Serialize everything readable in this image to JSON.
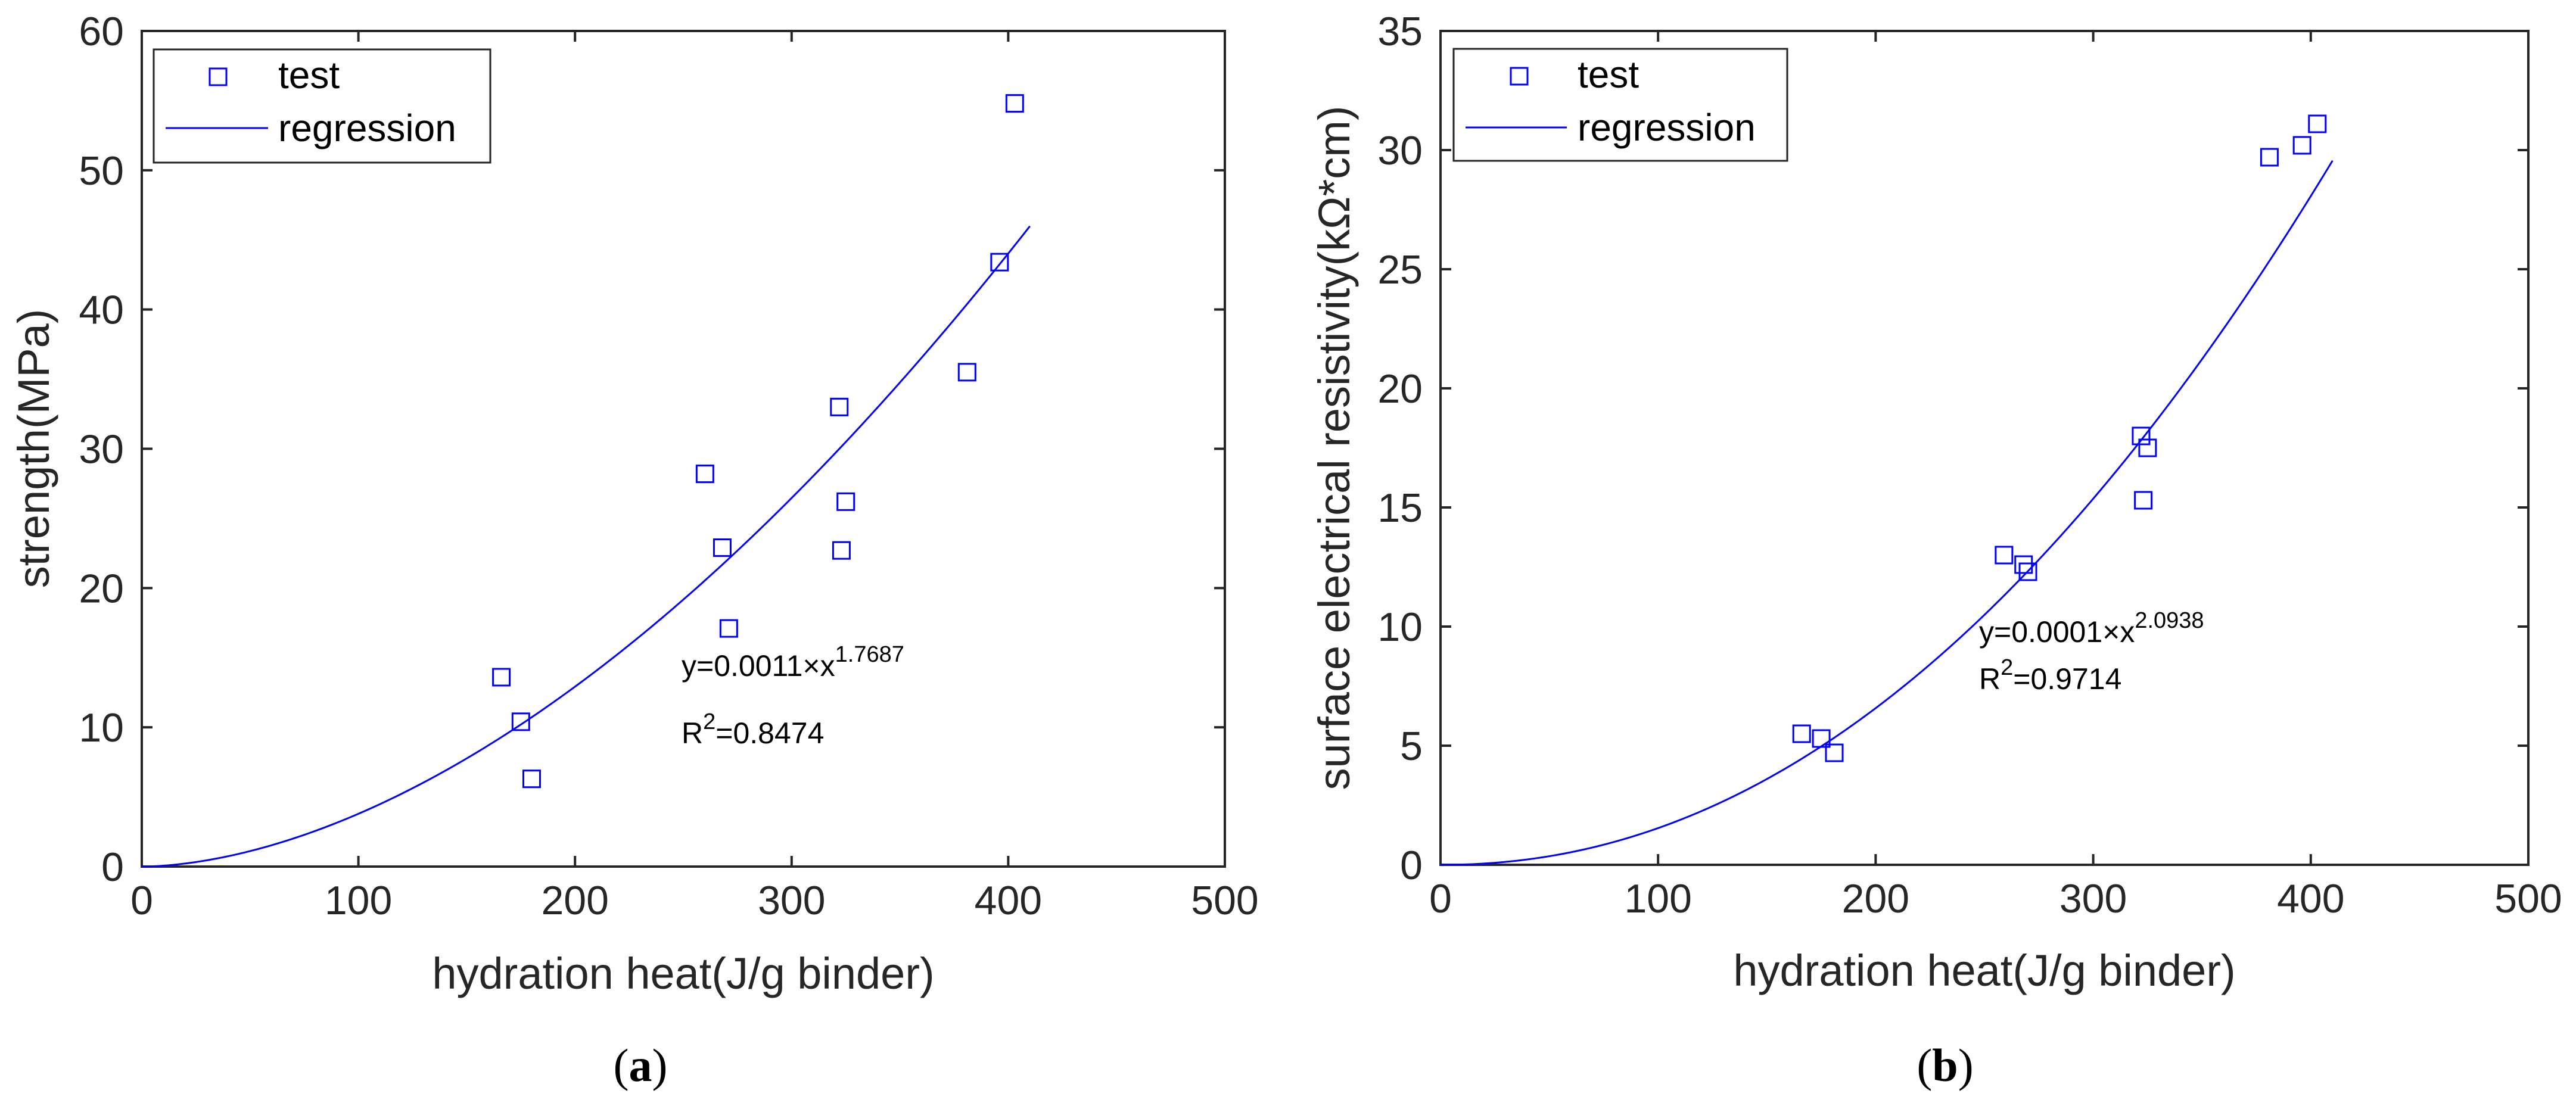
{
  "colors": {
    "series": "#0000ff",
    "axis": "#262626",
    "background": "#ffffff"
  },
  "chart_data": [
    {
      "type": "scatter",
      "panel_label": {
        "open": "(",
        "letter": "a",
        "close": ")"
      },
      "xlabel": "hydration heat(J/g binder)",
      "ylabel": "strength(MPa)",
      "xlim": [
        0,
        500
      ],
      "ylim": [
        0,
        60
      ],
      "x_ticks": [
        0,
        100,
        200,
        300,
        400,
        500
      ],
      "y_ticks": [
        0,
        10,
        20,
        30,
        40,
        50,
        60
      ],
      "grid": false,
      "legend_position": "top-left",
      "legend": {
        "test": "test",
        "regression": "regression"
      },
      "series": [
        {
          "name": "test",
          "marker": "square",
          "x": [
            166,
            175,
            180,
            260,
            268,
            271,
            322,
            323,
            325,
            381,
            396,
            403
          ],
          "y": [
            13.6,
            10.4,
            6.3,
            28.2,
            22.9,
            17.1,
            33.0,
            22.7,
            26.2,
            35.5,
            43.4,
            54.8
          ]
        },
        {
          "name": "regression",
          "type": "line",
          "model": "power",
          "a": 0.0011,
          "b": 1.7687,
          "x_range": [
            0,
            410
          ]
        }
      ],
      "annotations": {
        "equation_prefix": "y=0.0011×x",
        "equation_exponent": "1.7687",
        "r2_prefix": "R",
        "r2_sup": "2",
        "r2_value": "=0.8474"
      }
    },
    {
      "type": "scatter",
      "panel_label": {
        "open": "(",
        "letter": "b",
        "close": ")"
      },
      "xlabel": "hydration heat(J/g binder)",
      "ylabel": "surface electrical resistivity(kΩ*cm)",
      "xlim": [
        0,
        500
      ],
      "ylim": [
        0,
        35
      ],
      "x_ticks": [
        0,
        100,
        200,
        300,
        400,
        500
      ],
      "y_ticks": [
        0,
        5,
        10,
        15,
        20,
        25,
        30,
        35
      ],
      "grid": false,
      "legend_position": "top-left",
      "legend": {
        "test": "test",
        "regression": "regression"
      },
      "series": [
        {
          "name": "test",
          "marker": "square",
          "x": [
            166,
            175,
            181,
            259,
            268,
            270,
            322,
            323,
            325,
            381,
            396,
            403
          ],
          "y": [
            5.5,
            5.3,
            4.7,
            13.0,
            12.6,
            12.3,
            18.0,
            15.3,
            17.5,
            29.7,
            30.2,
            31.1
          ]
        },
        {
          "name": "regression",
          "type": "line",
          "model": "power",
          "a": 0.0001,
          "b": 2.0938,
          "x_range": [
            0,
            410
          ]
        }
      ],
      "annotations": {
        "equation_prefix": "y=0.0001×x",
        "equation_exponent": "2.0938",
        "r2_prefix": "R",
        "r2_sup": "2",
        "r2_value": "=0.9714"
      }
    }
  ]
}
